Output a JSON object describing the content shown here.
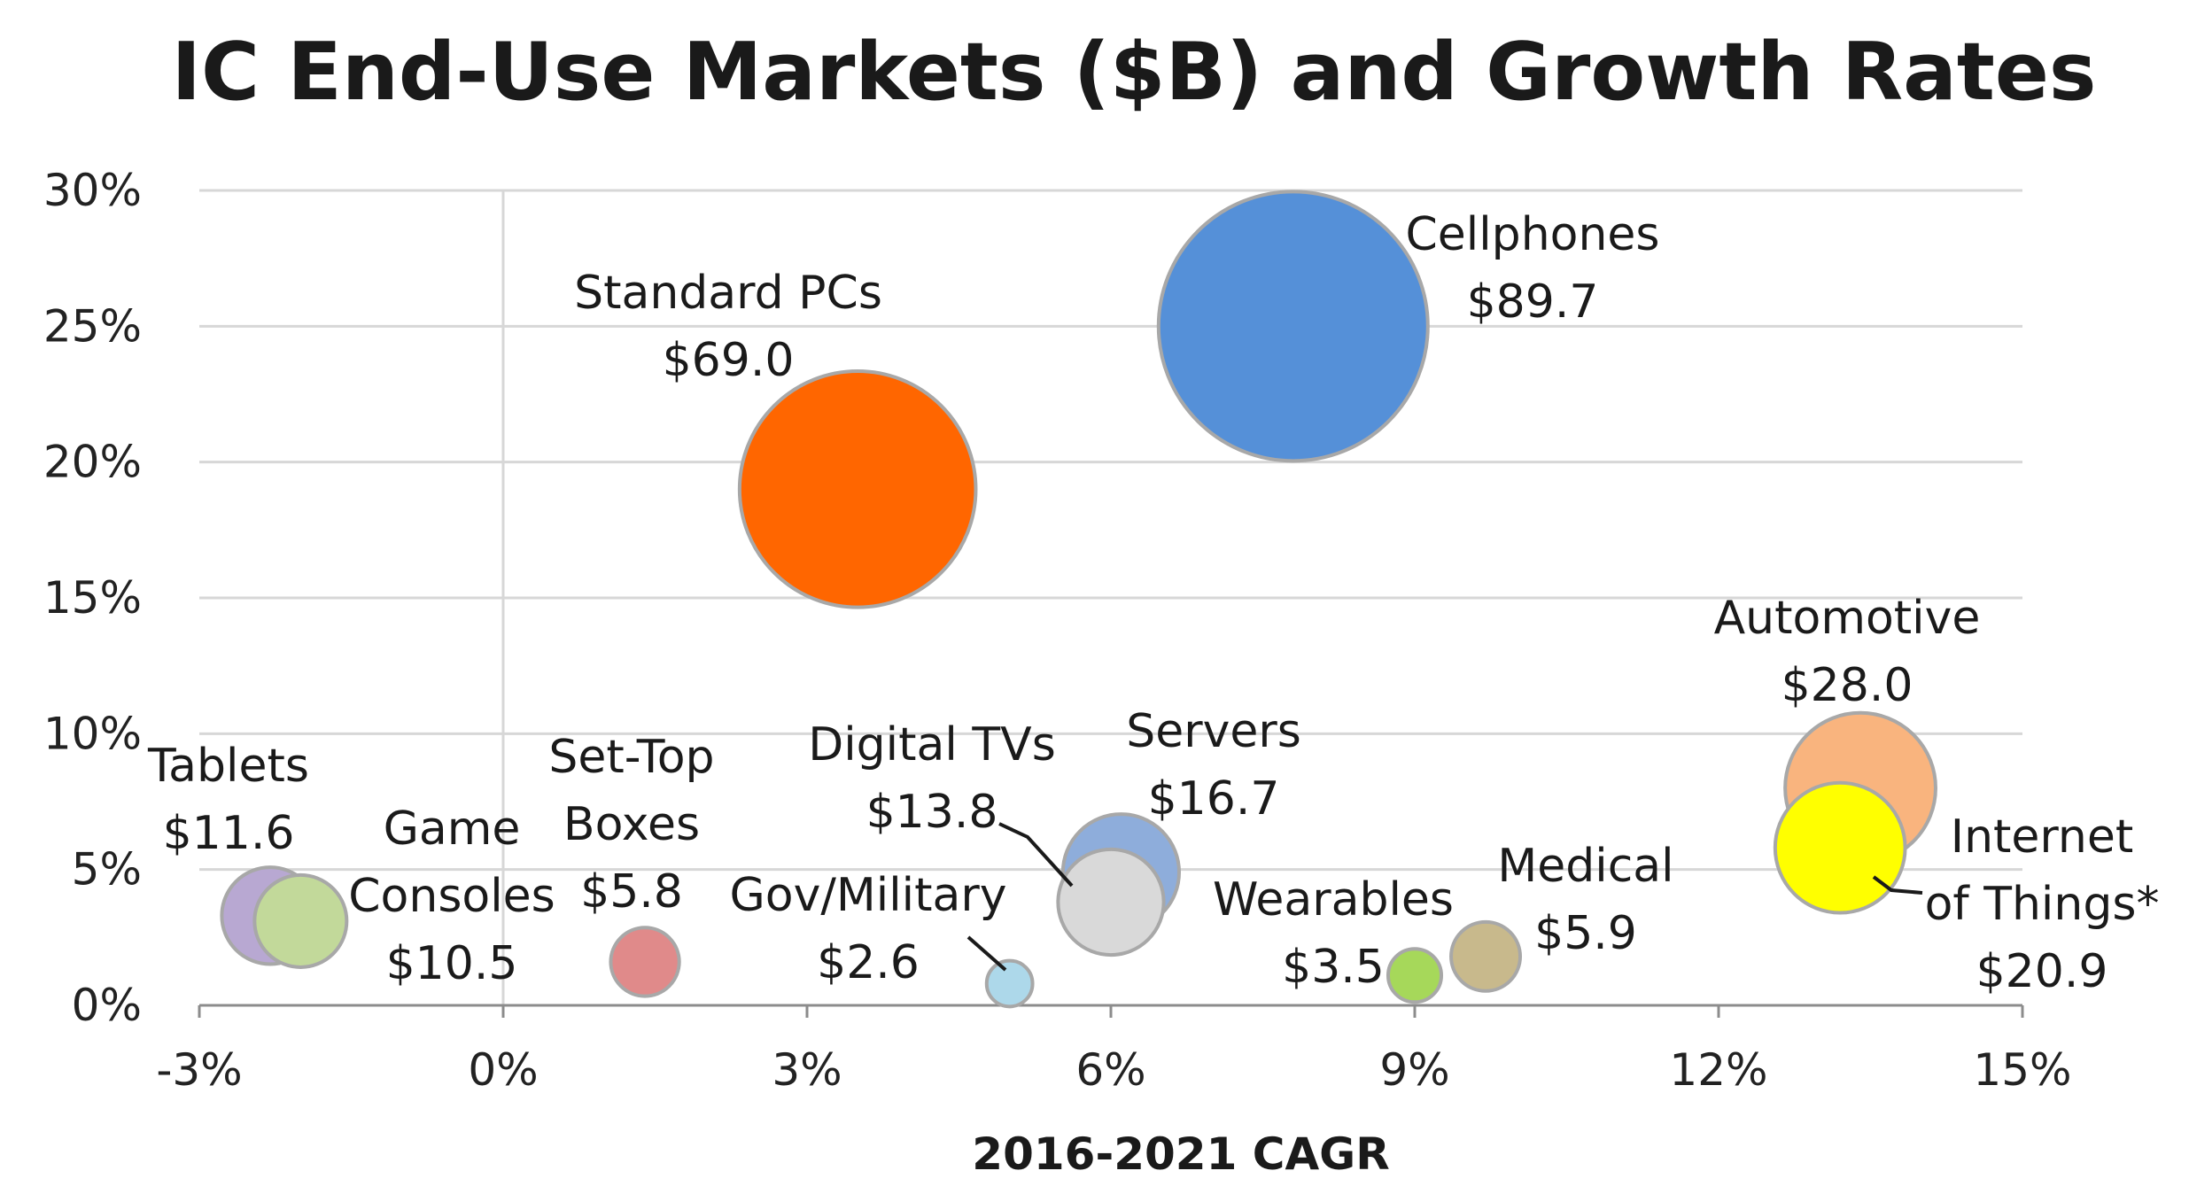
{
  "chart_data": {
    "type": "bubble",
    "title": "IC End-Use Markets ($B) and Growth Rates",
    "xlabel": "2016-2021 CAGR",
    "ylabel": "",
    "xlim": [
      -3,
      15
    ],
    "ylim": [
      0,
      30
    ],
    "x_unit": "%",
    "y_unit": "%",
    "xticks": [
      "-3%",
      "0%",
      "3%",
      "6%",
      "9%",
      "12%",
      "15%"
    ],
    "yticks": [
      "0%",
      "5%",
      "10%",
      "15%",
      "20%",
      "25%",
      "30%"
    ],
    "grid": true,
    "points": [
      {
        "name": "Automotive",
        "x": 13.4,
        "y": 8.0,
        "size": 28.0,
        "label_lines": [
          "Automotive",
          "$28.0"
        ],
        "color": "#F9B47E"
      },
      {
        "name": "Cellphones",
        "x": 7.8,
        "y": 25.0,
        "size": 89.7,
        "label_lines": [
          "Cellphones",
          "$89.7"
        ],
        "color": "#5590D8"
      },
      {
        "name": "Standard PCs",
        "x": 3.5,
        "y": 19.0,
        "size": 69.0,
        "label_lines": [
          "Standard PCs",
          "$69.0"
        ],
        "color": "#FF6600"
      },
      {
        "name": "Servers",
        "x": 6.1,
        "y": 4.9,
        "size": 16.7,
        "label_lines": [
          "Servers",
          "$16.7"
        ],
        "color": "#8EADDB"
      },
      {
        "name": "Digital TVs",
        "x": 6.0,
        "y": 3.8,
        "size": 13.8,
        "label_lines": [
          "Digital TVs",
          "$13.8"
        ],
        "color": "#D9D9D9"
      },
      {
        "name": "Internet of Things*",
        "x": 13.2,
        "y": 5.8,
        "size": 20.9,
        "label_lines": [
          "Internet",
          "of Things*",
          "$20.9"
        ],
        "color": "#FFFF00"
      },
      {
        "name": "Tablets",
        "x": -2.3,
        "y": 3.3,
        "size": 11.6,
        "label_lines": [
          "Tablets",
          "$11.6"
        ],
        "color": "#B8A8D2"
      },
      {
        "name": "Game Consoles",
        "x": -2.0,
        "y": 3.1,
        "size": 10.5,
        "label_lines": [
          "Game",
          "Consoles",
          "$10.5"
        ],
        "color": "#C2D99A"
      },
      {
        "name": "Set-Top Boxes",
        "x": 1.4,
        "y": 1.6,
        "size": 5.8,
        "label_lines": [
          "Set-Top",
          "Boxes",
          "$5.8"
        ],
        "color": "#E08A8A"
      },
      {
        "name": "Gov/Military",
        "x": 5.0,
        "y": 0.8,
        "size": 2.6,
        "label_lines": [
          "Gov/Military",
          "$2.6"
        ],
        "color": "#ADD8EA"
      },
      {
        "name": "Wearables",
        "x": 9.0,
        "y": 1.1,
        "size": 3.5,
        "label_lines": [
          "Wearables",
          "$3.5"
        ],
        "color": "#A6D85A"
      },
      {
        "name": "Medical",
        "x": 9.7,
        "y": 1.8,
        "size": 5.9,
        "label_lines": [
          "Medical",
          "$5.9"
        ],
        "color": "#C8B98C"
      }
    ]
  }
}
